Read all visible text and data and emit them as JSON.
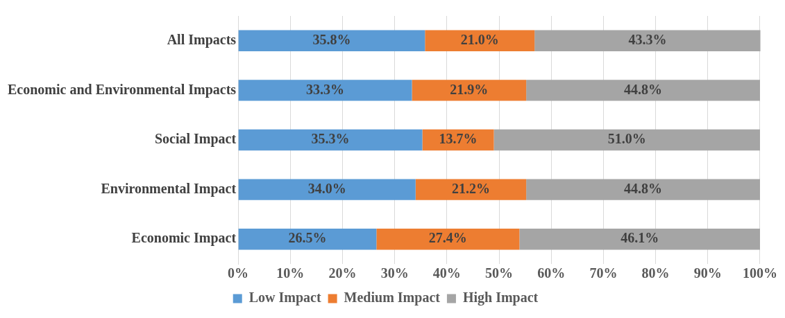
{
  "chart_data": {
    "type": "bar",
    "orientation": "horizontal",
    "stacked": true,
    "categories": [
      "All Impacts",
      "Economic and Environmental Impacts",
      "Social Impact",
      "Environmental Impact",
      "Economic Impact"
    ],
    "series": [
      {
        "name": "Low Impact",
        "color": "#5b9bd5",
        "values": [
          35.8,
          33.3,
          35.3,
          34.0,
          26.5
        ],
        "value_labels": [
          "35.8%",
          "33.3%",
          "35.3%",
          "34.0%",
          "26.5%"
        ]
      },
      {
        "name": "Medium Impact",
        "color": "#ed7d31",
        "values": [
          21.0,
          21.9,
          13.7,
          21.2,
          27.4
        ],
        "value_labels": [
          "21.0%",
          "21.9%",
          "13.7%",
          "21.2%",
          "27.4%"
        ]
      },
      {
        "name": "High Impact",
        "color": "#a5a5a5",
        "values": [
          43.3,
          44.8,
          51.0,
          44.8,
          46.1
        ],
        "value_labels": [
          "43.3%",
          "44.8%",
          "51.0%",
          "44.8%",
          "46.1%"
        ]
      }
    ],
    "xlim": [
      0,
      100.1
    ],
    "xticks": [
      {
        "value": 0,
        "label": "0%"
      },
      {
        "value": 10,
        "label": "10%"
      },
      {
        "value": 20,
        "label": "20%"
      },
      {
        "value": 30,
        "label": "30%"
      },
      {
        "value": 40,
        "label": "40%"
      },
      {
        "value": 50,
        "label": "50%"
      },
      {
        "value": 60,
        "label": "60%"
      },
      {
        "value": 70,
        "label": "70%"
      },
      {
        "value": 80,
        "label": "80%"
      },
      {
        "value": 90,
        "label": "90%"
      },
      {
        "value": 100,
        "label": "100%"
      }
    ],
    "grid": "x",
    "legend": "bottom"
  }
}
